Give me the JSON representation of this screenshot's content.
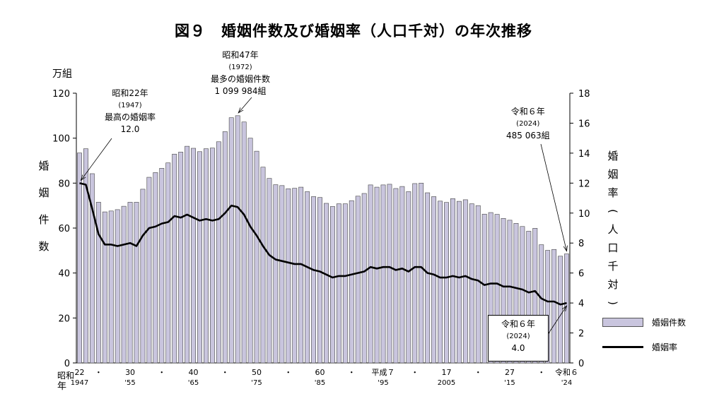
{
  "title": "図９　婚姻件数及び婚姻率（人口千対）の年次推移",
  "left_unit": "万組",
  "left_axis_label": [
    "婚",
    "姻",
    "件",
    "数"
  ],
  "right_axis_label": [
    "婚",
    "姻",
    "率",
    "(",
    "人",
    "口",
    "千",
    "対",
    ")"
  ],
  "x_axis_caption": {
    "line1": "昭和",
    "line2": "年"
  },
  "legend": {
    "bar": "婚姻件数",
    "line": "婚姻率",
    "bar_color": "#c9c5de",
    "line_color": "#000000"
  },
  "annotations": {
    "a1947": {
      "line1": "昭和22年",
      "line2": "(1947)",
      "line3": "最高の婚姻率",
      "line4": "12.0"
    },
    "a1972": {
      "line1": "昭和47年",
      "line2": "(1972)",
      "line3": "最多の婚姻件数",
      "line4": "1 099 984組"
    },
    "a2024a": {
      "line1": "令和６年",
      "line2": "(2024)",
      "line3": "485 063組"
    },
    "a2024b": {
      "line1": "令和６年",
      "line2": "(2024)",
      "line3": "4.0"
    }
  },
  "chart_data": {
    "type": "bar",
    "title": "図９　婚姻件数及び婚姻率（人口千対）の年次推移",
    "ylabel": "婚姻件数",
    "ylabel_right": "婚姻率（人口千対）",
    "ylim": [
      0,
      120
    ],
    "ylim_right": [
      0,
      18
    ],
    "y_ticks": [
      "0",
      "20",
      "40",
      "60",
      "80",
      "100",
      "120"
    ],
    "y_ticks_right": [
      "0",
      "2",
      "4",
      "6",
      "8",
      "10",
      "12",
      "14",
      "16",
      "18"
    ],
    "x_tick_labels": [
      {
        "year": 1947,
        "top": "22",
        "bottom": "1947"
      },
      {
        "year": 1950,
        "top": "・",
        "bottom": ""
      },
      {
        "year": 1955,
        "top": "30",
        "bottom": "'55"
      },
      {
        "year": 1960,
        "top": "・",
        "bottom": ""
      },
      {
        "year": 1965,
        "top": "40",
        "bottom": "'65"
      },
      {
        "year": 1970,
        "top": "・",
        "bottom": ""
      },
      {
        "year": 1975,
        "top": "50",
        "bottom": "'75"
      },
      {
        "year": 1980,
        "top": "・",
        "bottom": ""
      },
      {
        "year": 1985,
        "top": "60",
        "bottom": "'85"
      },
      {
        "year": 1990,
        "top": "・",
        "bottom": ""
      },
      {
        "year": 1995,
        "top": "平成７",
        "bottom": "'95"
      },
      {
        "year": 2000,
        "top": "・",
        "bottom": ""
      },
      {
        "year": 2005,
        "top": "17",
        "bottom": "2005"
      },
      {
        "year": 2010,
        "top": "・",
        "bottom": ""
      },
      {
        "year": 2015,
        "top": "27",
        "bottom": "'15"
      },
      {
        "year": 2020,
        "top": "・",
        "bottom": ""
      },
      {
        "year": 2024,
        "top": "令和６",
        "bottom": "'24"
      }
    ],
    "x": [
      1947,
      1948,
      1949,
      1950,
      1951,
      1952,
      1953,
      1954,
      1955,
      1956,
      1957,
      1958,
      1959,
      1960,
      1961,
      1962,
      1963,
      1964,
      1965,
      1966,
      1967,
      1968,
      1969,
      1970,
      1971,
      1972,
      1973,
      1974,
      1975,
      1976,
      1977,
      1978,
      1979,
      1980,
      1981,
      1982,
      1983,
      1984,
      1985,
      1986,
      1987,
      1988,
      1989,
      1990,
      1991,
      1992,
      1993,
      1994,
      1995,
      1996,
      1997,
      1998,
      1999,
      2000,
      2001,
      2002,
      2003,
      2004,
      2005,
      2006,
      2007,
      2008,
      2009,
      2010,
      2011,
      2012,
      2013,
      2014,
      2015,
      2016,
      2017,
      2018,
      2019,
      2020,
      2021,
      2022,
      2023,
      2024
    ],
    "series": [
      {
        "name": "婚姻件数",
        "type": "bar",
        "axis": "left",
        "values": [
          93.4,
          95.3,
          84.2,
          71.5,
          67.2,
          67.6,
          68.2,
          69.7,
          71.5,
          71.5,
          77.3,
          82.6,
          84.7,
          86.6,
          89.0,
          92.9,
          93.8,
          96.4,
          95.5,
          94.0,
          95.3,
          95.6,
          98.4,
          102.9,
          109.1,
          110.0,
          107.2,
          100.0,
          94.2,
          87.1,
          82.1,
          79.3,
          78.9,
          77.5,
          77.7,
          78.2,
          76.2,
          74.0,
          73.6,
          71.0,
          69.6,
          70.8,
          70.8,
          72.2,
          74.2,
          75.4,
          79.2,
          78.2,
          79.2,
          79.5,
          77.6,
          78.5,
          76.2,
          79.8,
          80.0,
          75.7,
          74.0,
          72.0,
          71.4,
          73.1,
          71.9,
          72.6,
          70.8,
          70.0,
          66.2,
          66.9,
          66.1,
          64.3,
          63.5,
          62.1,
          60.7,
          58.6,
          59.9,
          52.6,
          50.1,
          50.5,
          47.5,
          48.5
        ]
      },
      {
        "name": "婚姻率",
        "type": "line",
        "axis": "right",
        "values": [
          12.0,
          11.9,
          10.3,
          8.6,
          7.9,
          7.9,
          7.8,
          7.9,
          8.0,
          7.8,
          8.5,
          9.0,
          9.1,
          9.3,
          9.4,
          9.8,
          9.7,
          9.9,
          9.7,
          9.5,
          9.6,
          9.5,
          9.6,
          10.0,
          10.5,
          10.4,
          9.9,
          9.1,
          8.5,
          7.8,
          7.2,
          6.9,
          6.8,
          6.7,
          6.6,
          6.6,
          6.4,
          6.2,
          6.1,
          5.9,
          5.7,
          5.8,
          5.8,
          5.9,
          6.0,
          6.1,
          6.4,
          6.3,
          6.4,
          6.4,
          6.2,
          6.3,
          6.1,
          6.4,
          6.4,
          6.0,
          5.9,
          5.7,
          5.7,
          5.8,
          5.7,
          5.8,
          5.6,
          5.5,
          5.2,
          5.3,
          5.3,
          5.1,
          5.1,
          5.0,
          4.9,
          4.7,
          4.8,
          4.3,
          4.1,
          4.1,
          3.9,
          4.0
        ]
      }
    ]
  }
}
